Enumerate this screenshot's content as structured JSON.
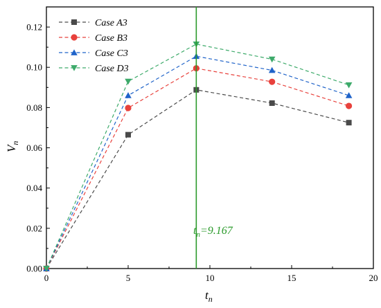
{
  "chart_data": {
    "type": "line",
    "xlabel": "t",
    "xlabel_sub": "n",
    "ylabel": "V",
    "ylabel_sub": "n",
    "xlim": [
      0,
      20
    ],
    "ylim": [
      0,
      0.13
    ],
    "x_ticks": [
      0,
      5,
      10,
      15,
      20
    ],
    "y_ticks": [
      0.0,
      0.02,
      0.04,
      0.06,
      0.08,
      0.1,
      0.12
    ],
    "x_tick_labels": [
      "0",
      "5",
      "10",
      "15",
      "20"
    ],
    "y_tick_labels": [
      "0.00",
      "0.02",
      "0.04",
      "0.06",
      "0.08",
      "0.10",
      "0.12"
    ],
    "grid": false,
    "legend_position": "top-left",
    "x": [
      0,
      5,
      9.167,
      13.8,
      18.5
    ],
    "series": [
      {
        "name": "Case A3",
        "values": [
          0,
          0.0665,
          0.0888,
          0.0822,
          0.0725
        ],
        "color": "#4a4a4a",
        "marker": "square"
      },
      {
        "name": "Case B3",
        "values": [
          0,
          0.0798,
          0.0995,
          0.0928,
          0.0808
        ],
        "color": "#e8413c",
        "marker": "circle"
      },
      {
        "name": "Case C3",
        "values": [
          0,
          0.086,
          0.1055,
          0.0985,
          0.086
        ],
        "color": "#1f63c9",
        "marker": "triangle-up"
      },
      {
        "name": "Case D3",
        "values": [
          0,
          0.093,
          0.1115,
          0.104,
          0.0912
        ],
        "color": "#3daa6a",
        "marker": "triangle-down"
      }
    ],
    "vline": {
      "x": 9.167,
      "color": "#2a9a2a"
    },
    "annotation": {
      "main": "t",
      "sub": "n",
      "suffix": "=9.167",
      "color": "#2a9a2a"
    }
  }
}
